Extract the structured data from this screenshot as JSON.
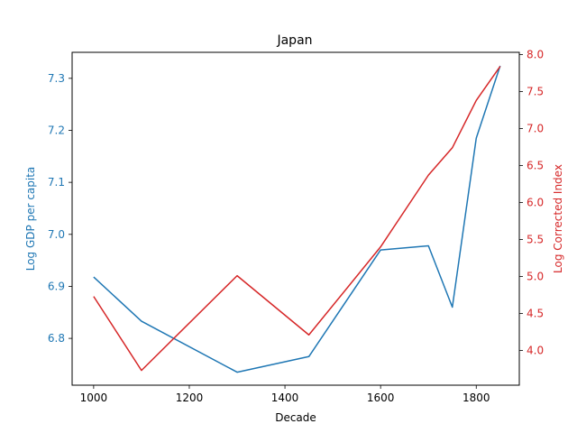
{
  "chart_data": {
    "type": "line",
    "title": "Japan",
    "xlabel": "Decade",
    "xlim": [
      955,
      1890
    ],
    "xticks": [
      1000,
      1200,
      1400,
      1600,
      1800
    ],
    "left_axis": {
      "label": "Log GDP per capita",
      "color": "#1f77b4",
      "ylim": [
        6.71,
        7.35
      ],
      "ticks": [
        "6.8",
        "6.9",
        "7.0",
        "7.1",
        "7.2",
        "7.3"
      ]
    },
    "right_axis": {
      "label": "Log Corrected Index",
      "color": "#d62728",
      "ylim": [
        3.53,
        8.03
      ],
      "ticks": [
        "4.0",
        "4.5",
        "5.0",
        "5.5",
        "6.0",
        "6.5",
        "7.0",
        "7.5",
        "8.0"
      ]
    },
    "series": [
      {
        "axis": "left",
        "color": "#1f77b4",
        "x": [
          1000,
          1100,
          1300,
          1450,
          1600,
          1700,
          1750,
          1800,
          1850
        ],
        "y": [
          6.918,
          6.833,
          6.735,
          6.765,
          6.97,
          6.978,
          6.86,
          7.185,
          7.324
        ]
      },
      {
        "axis": "right",
        "color": "#d62728",
        "x": [
          1000,
          1100,
          1300,
          1450,
          1600,
          1700,
          1750,
          1800,
          1850
        ],
        "y": [
          4.73,
          3.73,
          5.01,
          4.21,
          5.4,
          6.37,
          6.74,
          7.38,
          7.84
        ]
      }
    ],
    "grid": false,
    "legend": "none"
  }
}
